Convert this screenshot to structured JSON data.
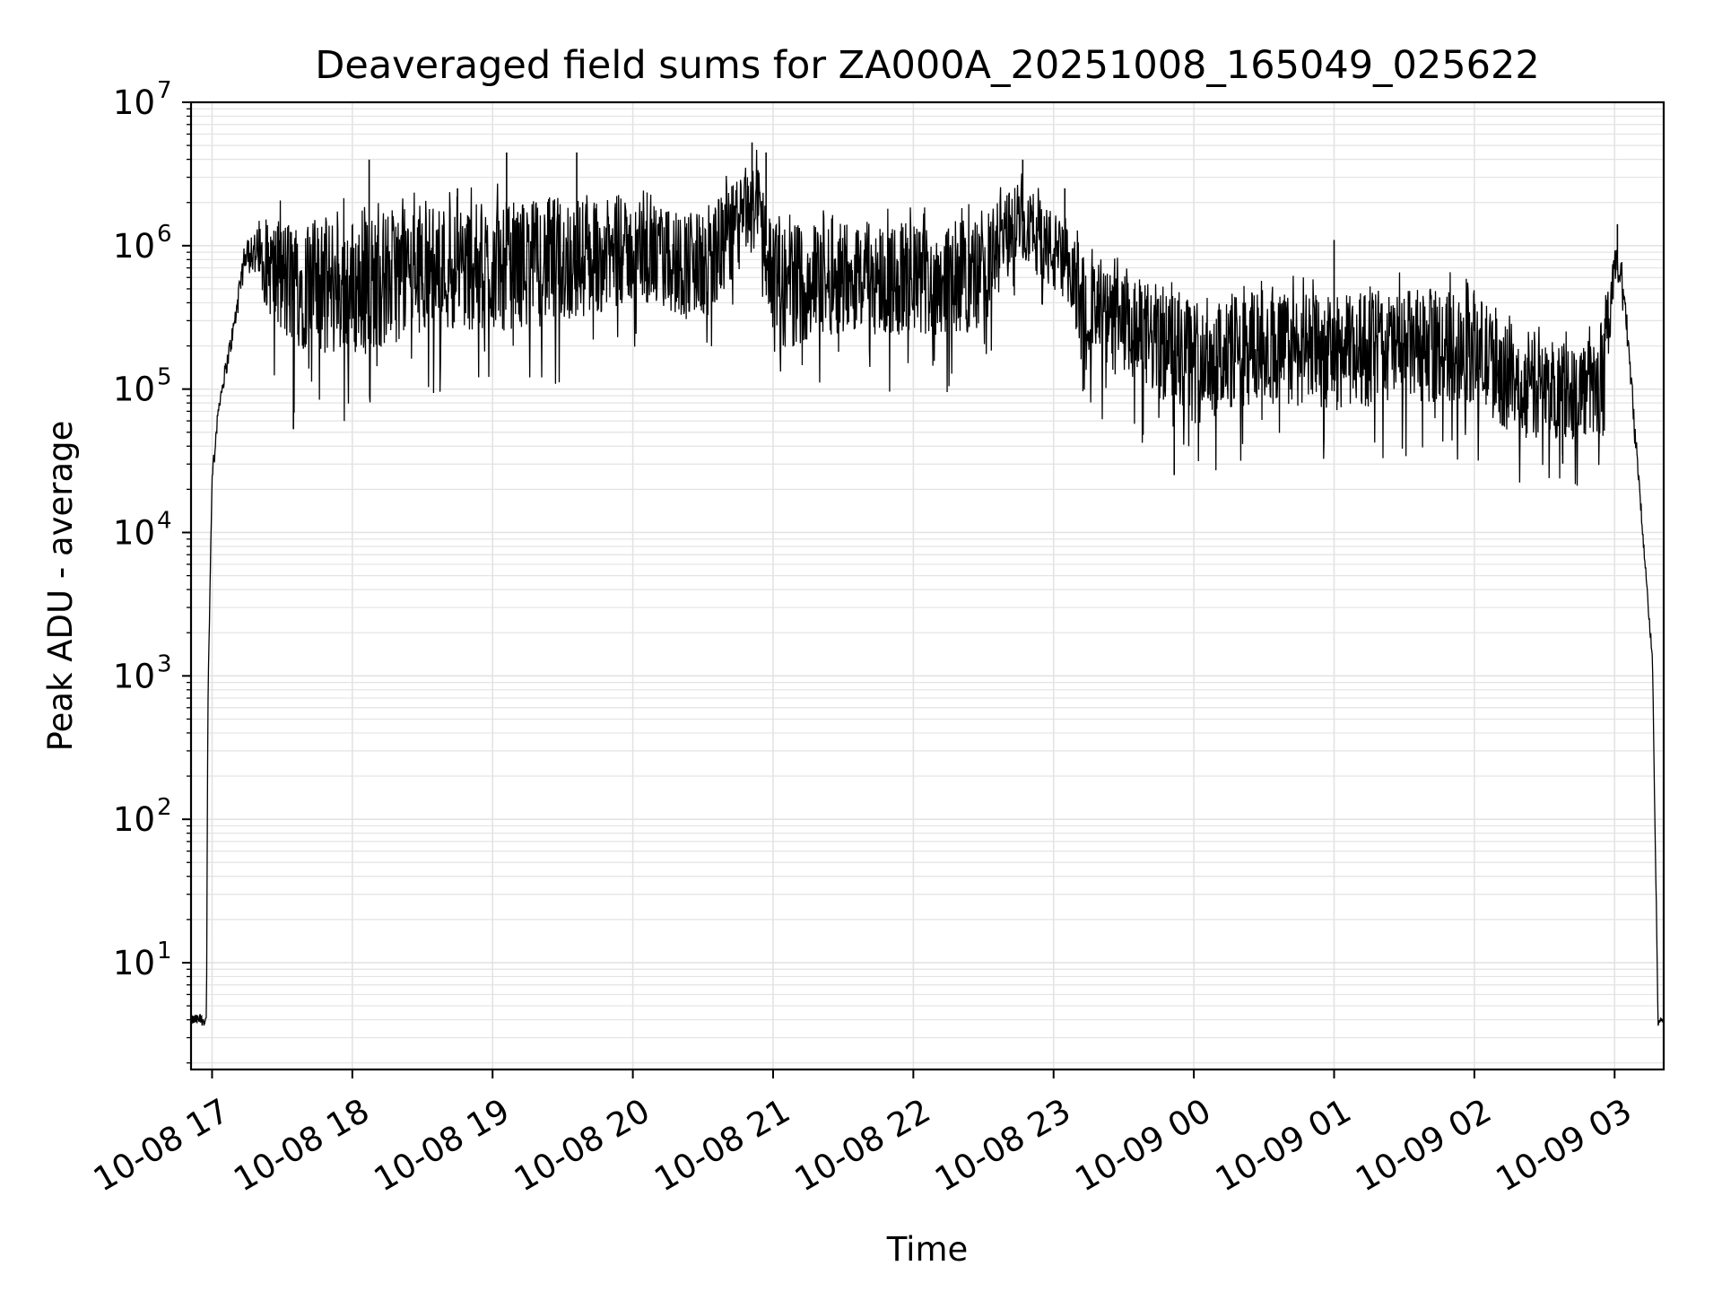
{
  "chart_data": {
    "type": "line",
    "title": "Deaveraged field sums for ZA000A_20251008_165049_025622",
    "xlabel": "Time",
    "ylabel": "Peak ADU - average",
    "yscale": "log",
    "ylim": [
      1.8,
      10000000
    ],
    "xlim_hours": [
      16.85,
      27.35
    ],
    "grid": true,
    "x_ticks": [
      {
        "hour": 17,
        "label": "10-08 17"
      },
      {
        "hour": 18,
        "label": "10-08 18"
      },
      {
        "hour": 19,
        "label": "10-08 19"
      },
      {
        "hour": 20,
        "label": "10-08 20"
      },
      {
        "hour": 21,
        "label": "10-08 21"
      },
      {
        "hour": 22,
        "label": "10-08 22"
      },
      {
        "hour": 23,
        "label": "10-08 23"
      },
      {
        "hour": 24,
        "label": "10-09 00"
      },
      {
        "hour": 25,
        "label": "10-09 01"
      },
      {
        "hour": 26,
        "label": "10-09 02"
      },
      {
        "hour": 27,
        "label": "10-09 03"
      }
    ],
    "y_ticks": [
      {
        "exp": 1,
        "base": "10",
        "sup": "1"
      },
      {
        "exp": 2,
        "base": "10",
        "sup": "2"
      },
      {
        "exp": 3,
        "base": "10",
        "sup": "3"
      },
      {
        "exp": 4,
        "base": "10",
        "sup": "4"
      },
      {
        "exp": 5,
        "base": "10",
        "sup": "5"
      },
      {
        "exp": 6,
        "base": "10",
        "sup": "6"
      },
      {
        "exp": 7,
        "base": "10",
        "sup": "7"
      }
    ],
    "series": [
      {
        "name": "Deaveraged field sum",
        "color": "#000000",
        "envelope_log10": [
          {
            "hour": 16.85,
            "center": 0.6,
            "spread": 0.04
          },
          {
            "hour": 16.96,
            "center": 0.6,
            "spread": 0.04
          },
          {
            "hour": 16.97,
            "center": 2.8,
            "spread": 0.02
          },
          {
            "hour": 17.0,
            "center": 4.4,
            "spread": 0.05
          },
          {
            "hour": 17.05,
            "center": 4.9,
            "spread": 0.05
          },
          {
            "hour": 17.15,
            "center": 5.4,
            "spread": 0.08
          },
          {
            "hour": 17.25,
            "center": 6.0,
            "spread": 0.1
          },
          {
            "hour": 17.5,
            "center": 5.75,
            "spread": 0.45
          },
          {
            "hour": 18.0,
            "center": 5.7,
            "spread": 0.5
          },
          {
            "hour": 18.5,
            "center": 5.85,
            "spread": 0.45
          },
          {
            "hour": 19.0,
            "center": 5.85,
            "spread": 0.45
          },
          {
            "hour": 19.5,
            "center": 5.9,
            "spread": 0.45
          },
          {
            "hour": 20.0,
            "center": 5.95,
            "spread": 0.35
          },
          {
            "hour": 20.5,
            "center": 5.85,
            "spread": 0.4
          },
          {
            "hour": 20.9,
            "center": 6.3,
            "spread": 0.3
          },
          {
            "hour": 21.0,
            "center": 5.7,
            "spread": 0.45
          },
          {
            "hour": 21.5,
            "center": 5.8,
            "spread": 0.4
          },
          {
            "hour": 22.0,
            "center": 5.75,
            "spread": 0.4
          },
          {
            "hour": 22.5,
            "center": 5.8,
            "spread": 0.4
          },
          {
            "hour": 22.75,
            "center": 6.2,
            "spread": 0.25
          },
          {
            "hour": 23.0,
            "center": 5.95,
            "spread": 0.3
          },
          {
            "hour": 23.3,
            "center": 5.5,
            "spread": 0.35
          },
          {
            "hour": 23.7,
            "center": 5.35,
            "spread": 0.4
          },
          {
            "hour": 24.0,
            "center": 5.2,
            "spread": 0.45
          },
          {
            "hour": 24.5,
            "center": 5.3,
            "spread": 0.4
          },
          {
            "hour": 25.0,
            "center": 5.25,
            "spread": 0.4
          },
          {
            "hour": 25.5,
            "center": 5.3,
            "spread": 0.4
          },
          {
            "hour": 26.0,
            "center": 5.3,
            "spread": 0.4
          },
          {
            "hour": 26.3,
            "center": 5.0,
            "spread": 0.35
          },
          {
            "hour": 26.9,
            "center": 5.0,
            "spread": 0.35
          },
          {
            "hour": 27.0,
            "center": 5.85,
            "spread": 0.15
          },
          {
            "hour": 27.05,
            "center": 5.8,
            "spread": 0.1
          },
          {
            "hour": 27.1,
            "center": 5.3,
            "spread": 0.1
          },
          {
            "hour": 27.2,
            "center": 4.0,
            "spread": 0.05
          },
          {
            "hour": 27.27,
            "center": 3.1,
            "spread": 0.05
          },
          {
            "hour": 27.31,
            "center": 0.6,
            "spread": 0.04
          },
          {
            "hour": 27.35,
            "center": 0.6,
            "spread": 0.04
          }
        ],
        "spikes": [
          {
            "hour": 18.12,
            "log10": 6.6
          },
          {
            "hour": 18.75,
            "log10": 6.4
          },
          {
            "hour": 19.1,
            "log10": 6.65
          },
          {
            "hour": 19.6,
            "log10": 6.65
          },
          {
            "hour": 20.85,
            "log10": 6.72
          },
          {
            "hour": 20.95,
            "log10": 6.65
          },
          {
            "hour": 22.78,
            "log10": 6.6
          },
          {
            "hour": 23.08,
            "log10": 6.4
          },
          {
            "hour": 25.0,
            "log10": 6.04
          },
          {
            "hour": 27.02,
            "log10": 6.15
          },
          {
            "hour": 17.58,
            "log10": 4.72
          },
          {
            "hour": 23.86,
            "log10": 4.4
          },
          {
            "hour": 26.63,
            "log10": 4.48
          }
        ]
      }
    ]
  }
}
